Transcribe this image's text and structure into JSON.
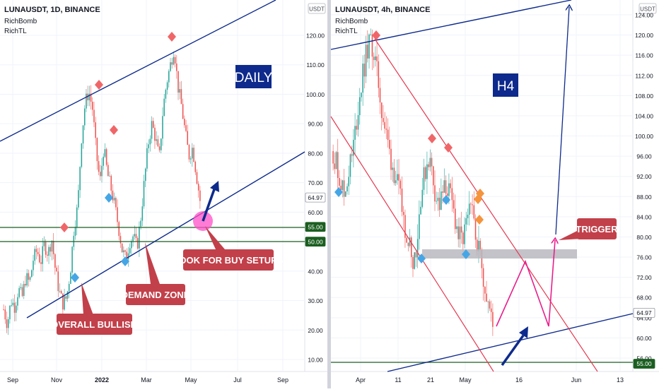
{
  "chart_data": [
    {
      "type": "candlestick",
      "title": "LUNAUSDT, 1D, BINANCE",
      "indicators": [
        "RichBomb",
        "RichTL"
      ],
      "currency_label": "USDT",
      "y_ticks": [
        "120.00",
        "110.00",
        "100.00",
        "90.00",
        "80.00",
        "70.00",
        "60.00",
        "50.00",
        "40.00",
        "30.00",
        "20.00",
        "10.00"
      ],
      "x_ticks": [
        "Sep",
        "Nov",
        "2022",
        "Mar",
        "May",
        "Jul",
        "Sep"
      ],
      "price_badges": [
        {
          "label": "64.97",
          "value": 64.97,
          "color": "#ffffff"
        },
        {
          "label": "55.00",
          "value": 55.0,
          "color": "#1b5e20"
        },
        {
          "label": "50.00",
          "value": 50.0,
          "color": "#1b5e20"
        }
      ],
      "horizontal_levels": [
        55.0,
        50.0
      ],
      "timeframe_label": "DAILY",
      "annotations": [
        "LOOK FOR BUY SETUPS",
        "DEMAND ZONE",
        "OVERALL BULLISH"
      ],
      "colors": {
        "up": "#26a69a",
        "down": "#ef5350",
        "channel": "#0d2a8c",
        "level": "#1b5e20",
        "label_bg": "#c2404a",
        "highlight": "#ff4fc8"
      },
      "close_series": [
        27,
        22,
        30,
        28,
        34,
        31,
        38,
        36,
        44,
        47,
        43,
        49,
        46,
        51,
        40,
        33,
        29,
        31,
        40,
        55,
        62,
        85,
        97,
        101,
        95,
        80,
        70,
        82,
        73,
        68,
        62,
        55,
        47,
        44,
        50,
        52,
        48,
        58,
        71,
        83,
        90,
        85,
        78,
        95,
        104,
        110,
        116,
        103,
        96,
        87,
        79,
        82,
        73,
        64
      ]
    },
    {
      "type": "candlestick",
      "title": "LUNAUSDT, 4h, BINANCE",
      "indicators": [
        "RichBomb",
        "RichTL"
      ],
      "currency_label": "USDT",
      "y_ticks": [
        "124.00",
        "120.00",
        "116.00",
        "112.00",
        "108.00",
        "104.00",
        "100.00",
        "96.00",
        "92.00",
        "88.00",
        "84.00",
        "80.00",
        "76.00",
        "72.00",
        "68.00",
        "64.00",
        "60.00",
        "56.00"
      ],
      "x_ticks": [
        "Apr",
        "11",
        "21",
        "May",
        "16",
        "Jun",
        "13"
      ],
      "price_badges": [
        {
          "label": "64.97",
          "value": 64.97,
          "color": "#ffffff"
        },
        {
          "label": "55.00",
          "value": 55.0,
          "color": "#1b5e20"
        }
      ],
      "horizontal_levels": [
        55.0
      ],
      "timeframe_label": "H4",
      "annotations": [
        "TRIGGER"
      ],
      "demand_zone": [
        76.6,
        78.0
      ],
      "colors": {
        "up": "#26a69a",
        "down": "#ef5350",
        "channel": "#0d2a8c",
        "descending_channel": "#e53950",
        "projection": "#e91e8c",
        "zone": "#b9b9bf",
        "label_bg": "#c2404a"
      },
      "close_series": [
        97,
        94,
        91,
        88,
        93,
        96,
        102,
        108,
        113,
        117,
        119,
        115,
        110,
        104,
        100,
        96,
        93,
        90,
        86,
        82,
        79,
        76,
        78,
        88,
        92,
        96,
        93,
        88,
        86,
        89,
        90,
        87,
        84,
        80,
        79,
        82,
        85,
        84,
        79,
        75,
        70,
        66,
        62
      ]
    }
  ]
}
